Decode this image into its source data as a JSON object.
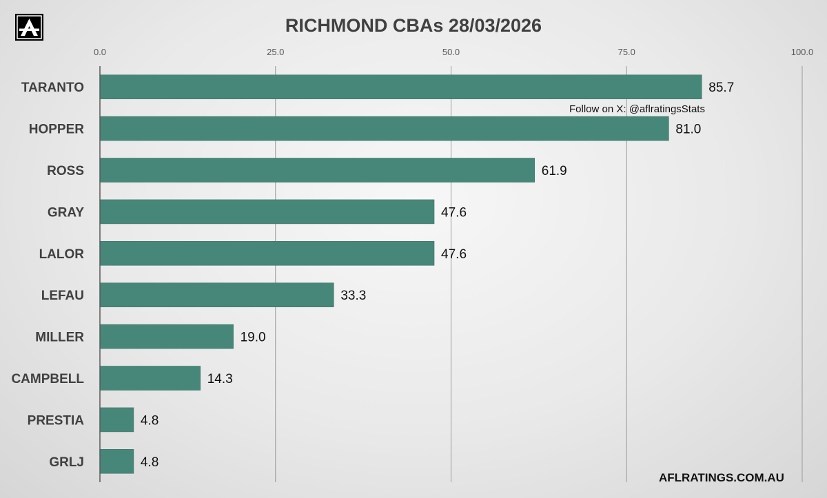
{
  "chart_data": {
    "type": "bar",
    "orientation": "horizontal",
    "title": "RICHMOND CBAs 28/03/2026",
    "categories": [
      "TARANTO",
      "HOPPER",
      "ROSS",
      "GRAY",
      "LALOR",
      "LEFAU",
      "MILLER",
      "CAMPBELL",
      "PRESTIA",
      "GRLJ"
    ],
    "values": [
      85.7,
      81.0,
      61.9,
      47.6,
      47.6,
      33.3,
      19.0,
      14.3,
      4.8,
      4.8
    ],
    "value_labels": [
      "85.7",
      "81.0",
      "61.9",
      "47.6",
      "47.6",
      "33.3",
      "19.0",
      "14.3",
      "4.8",
      "4.8"
    ],
    "xlim": [
      0,
      100
    ],
    "x_ticks": [
      0,
      25,
      50,
      75,
      100
    ],
    "x_tick_labels": [
      "0.0",
      "25.0",
      "50.0",
      "75.0",
      "100.0"
    ],
    "x_axis_position": "top",
    "grid": true,
    "bar_color": "#46877a"
  },
  "annotations": {
    "follow": "Follow on X: @aflratingsStats",
    "site": "AFLRATINGS.COM.AU"
  },
  "logo": {
    "letter": "A"
  }
}
